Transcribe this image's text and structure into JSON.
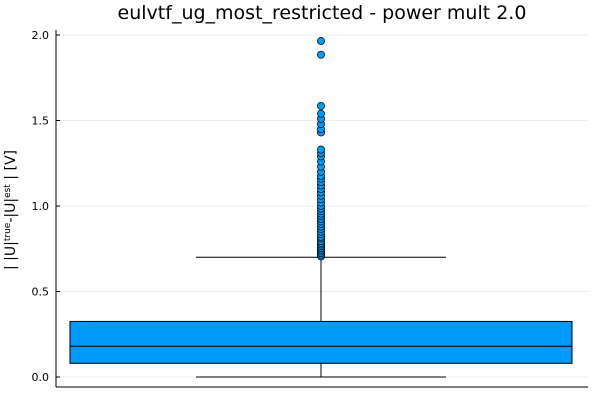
{
  "chart_data": {
    "type": "box",
    "title": "eulvtf_ug_most_restricted - power mult 2.0",
    "xlabel": "",
    "ylabel": {
      "parts": [
        "| |U|",
        "true",
        "-|U|",
        "est",
        " | [V]"
      ]
    },
    "ylim": [
      -0.05,
      2.05
    ],
    "yticks": [
      0.0,
      0.5,
      1.0,
      1.5,
      2.0
    ],
    "ytick_labels": [
      "0.0",
      "0.5",
      "1.0",
      "1.5",
      "2.0"
    ],
    "grid": true,
    "legend": "none",
    "box": {
      "q1": 0.08,
      "median": 0.18,
      "q3": 0.325,
      "whisker_low": 0.0,
      "whisker_high": 0.7,
      "color": "#009AF9"
    },
    "outliers": [
      0.705,
      0.715,
      0.725,
      0.735,
      0.745,
      0.755,
      0.765,
      0.775,
      0.785,
      0.795,
      0.81,
      0.82,
      0.835,
      0.85,
      0.865,
      0.88,
      0.895,
      0.91,
      0.925,
      0.94,
      0.955,
      0.97,
      0.985,
      1.0,
      1.02,
      1.04,
      1.06,
      1.08,
      1.1,
      1.12,
      1.14,
      1.16,
      1.175,
      1.2,
      1.23,
      1.26,
      1.29,
      1.31,
      1.33,
      1.43,
      1.45,
      1.48,
      1.51,
      1.54,
      1.585,
      1.885,
      1.965
    ],
    "colors": {
      "box_fill": "#009AF9",
      "box_stroke": "#000000",
      "grid": "#ececec",
      "axis": "#000000"
    }
  }
}
